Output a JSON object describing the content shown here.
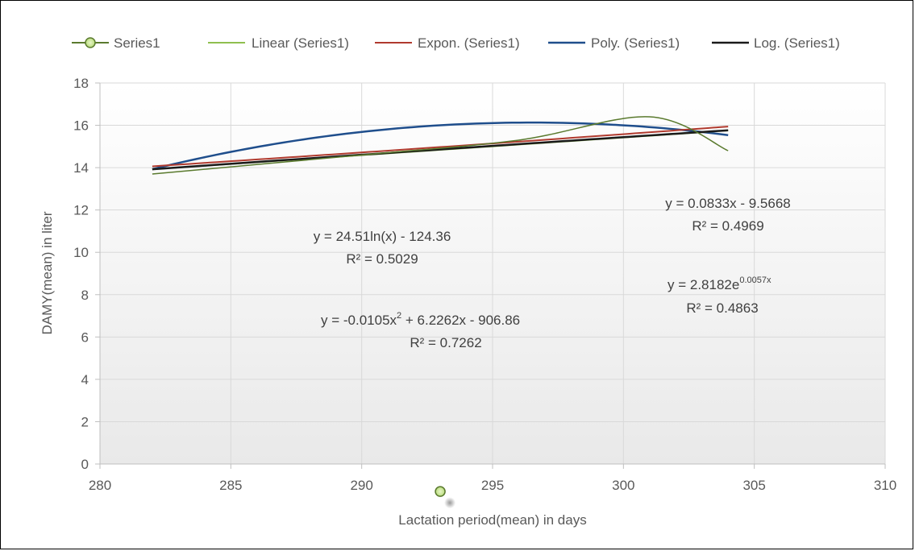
{
  "chart_data": {
    "type": "scatter",
    "xlabel": "Lactation period(mean) in days",
    "ylabel": "DAMY(mean) in liter",
    "xlim": [
      280,
      310
    ],
    "ylim": [
      0,
      18
    ],
    "x_ticks": [
      "280",
      "285",
      "290",
      "295",
      "300",
      "305",
      "310"
    ],
    "y_ticks": [
      "0",
      "2",
      "4",
      "6",
      "8",
      "10",
      "12",
      "14",
      "16",
      "18"
    ],
    "grid": true,
    "legend_position": "top",
    "series": [
      {
        "name": "Series1",
        "kind": "smooth-line-marker",
        "color": "#5a7a2e",
        "points": [
          [
            282,
            13.7
          ],
          [
            290,
            14.6
          ],
          [
            296,
            15.3
          ],
          [
            301,
            16.4
          ],
          [
            304,
            14.8
          ]
        ]
      }
    ],
    "trendlines": [
      {
        "name": "Linear (Series1)",
        "type": "linear",
        "color": "#8fbf4f",
        "equation": "y = 0.0833x - 9.5668",
        "r2": "R² = 0.4969"
      },
      {
        "name": "Expon. (Series1)",
        "type": "exponential",
        "color": "#b03a2e",
        "equation_base": "y = 2.8182e",
        "equation_exp": "0.0057x",
        "r2": "R² = 0.4863"
      },
      {
        "name": "Poly. (Series1)",
        "type": "polynomial",
        "color": "#1f4e8c",
        "equation_a": "y = -0.0105x",
        "equation_sup": "2",
        "equation_b": " + 6.2262x - 906.86",
        "r2": "R² = 0.7262"
      },
      {
        "name": "Log. (Series1)",
        "type": "logarithmic",
        "color": "#1a1a1a",
        "equation": "y = 24.51ln(x) - 124.36",
        "r2": "R² = 0.5029"
      }
    ],
    "stray_marker": {
      "x": 293,
      "y": -1.3
    }
  }
}
